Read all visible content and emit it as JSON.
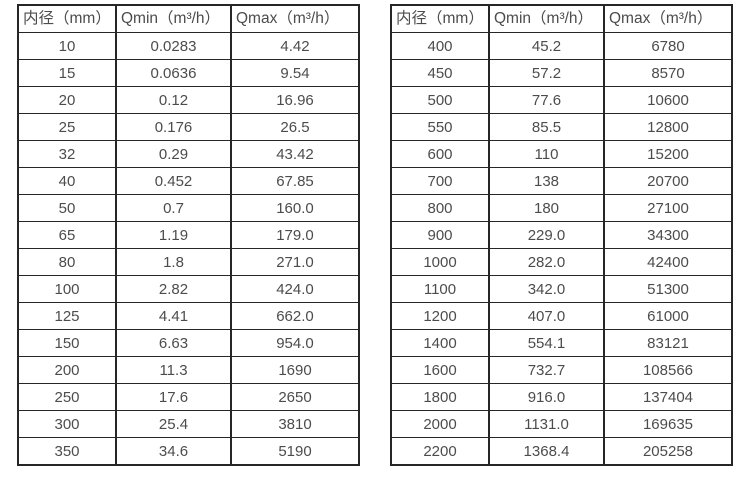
{
  "colors": {
    "background": "#ffffff",
    "border": "#262626",
    "text": "#4c4c4c"
  },
  "tables": [
    {
      "name": "flow-table-small-diameters",
      "headers": [
        "内径（mm）",
        "Qmin（m³/h）",
        "Qmax（m³/h）"
      ],
      "rows": [
        [
          "10",
          "0.0283",
          "4.42"
        ],
        [
          "15",
          "0.0636",
          "9.54"
        ],
        [
          "20",
          "0.12",
          "16.96"
        ],
        [
          "25",
          "0.176",
          "26.5"
        ],
        [
          "32",
          "0.29",
          "43.42"
        ],
        [
          "40",
          "0.452",
          "67.85"
        ],
        [
          "50",
          "0.7",
          "160.0"
        ],
        [
          "65",
          "1.19",
          "179.0"
        ],
        [
          "80",
          "1.8",
          "271.0"
        ],
        [
          "100",
          "2.82",
          "424.0"
        ],
        [
          "125",
          "4.41",
          "662.0"
        ],
        [
          "150",
          "6.63",
          "954.0"
        ],
        [
          "200",
          "11.3",
          "1690"
        ],
        [
          "250",
          "17.6",
          "2650"
        ],
        [
          "300",
          "25.4",
          "3810"
        ],
        [
          "350",
          "34.6",
          "5190"
        ]
      ]
    },
    {
      "name": "flow-table-large-diameters",
      "headers": [
        "内径（mm）",
        "Qmin（m³/h）",
        "Qmax（m³/h）"
      ],
      "rows": [
        [
          "400",
          "45.2",
          "6780"
        ],
        [
          "450",
          "57.2",
          "8570"
        ],
        [
          "500",
          "77.6",
          "10600"
        ],
        [
          "550",
          "85.5",
          "12800"
        ],
        [
          "600",
          "110",
          "15200"
        ],
        [
          "700",
          "138",
          "20700"
        ],
        [
          "800",
          "180",
          "27100"
        ],
        [
          "900",
          "229.0",
          "34300"
        ],
        [
          "1000",
          "282.0",
          "42400"
        ],
        [
          "1100",
          "342.0",
          "51300"
        ],
        [
          "1200",
          "407.0",
          "61000"
        ],
        [
          "1400",
          "554.1",
          "83121"
        ],
        [
          "1600",
          "732.7",
          "108566"
        ],
        [
          "1800",
          "916.0",
          "137404"
        ],
        [
          "2000",
          "1131.0",
          "169635"
        ],
        [
          "2200",
          "1368.4",
          "205258"
        ]
      ]
    }
  ]
}
